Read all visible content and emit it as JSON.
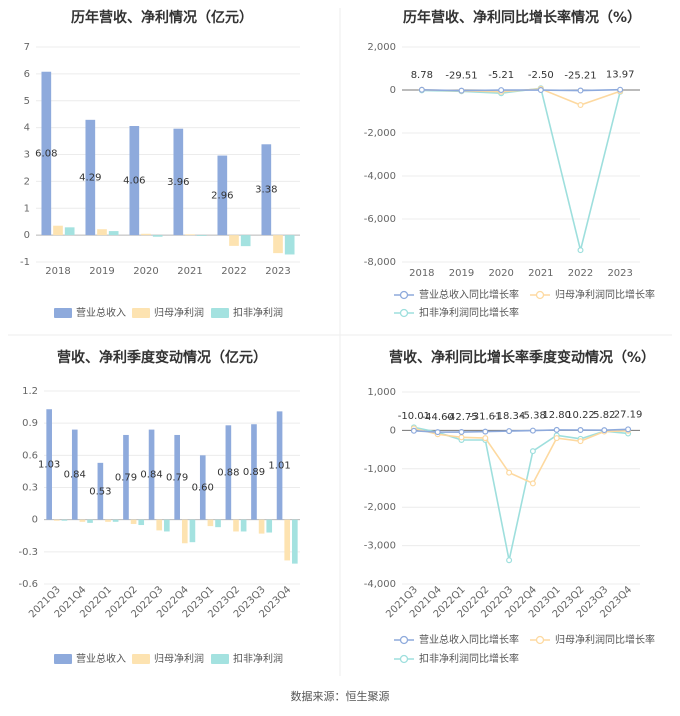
{
  "source": "数据来源：恒生聚源",
  "colors": {
    "revenue": "#8eaadc",
    "net_profit": "#fde3b1",
    "deducted_profit": "#a4e2e0",
    "revenue_line": "#8eaadc",
    "net_line": "#fdd9a0",
    "deducted_line": "#9edfdd"
  },
  "chart_data": [
    {
      "type": "bar",
      "title": "历年营收、净利情况（亿元）",
      "categories": [
        "2018",
        "2019",
        "2020",
        "2021",
        "2022",
        "2023"
      ],
      "ylim": [
        -1,
        7
      ],
      "yticks": [
        "-1",
        "0",
        "1",
        "2",
        "3",
        "4",
        "5",
        "6",
        "7"
      ],
      "series": [
        {
          "name": "营业总收入",
          "values": [
            6.08,
            4.29,
            4.06,
            3.96,
            2.96,
            3.38
          ],
          "labels": [
            "6.08",
            "4.29",
            "4.06",
            "3.96",
            "2.96",
            "3.38"
          ]
        },
        {
          "name": "归母净利润",
          "values": [
            0.35,
            0.22,
            0.05,
            0.03,
            -0.4,
            -0.67
          ]
        },
        {
          "name": "扣非净利润",
          "values": [
            0.29,
            0.15,
            -0.06,
            -0.02,
            -0.41,
            -0.72
          ]
        }
      ],
      "legend": "bottom"
    },
    {
      "type": "line",
      "title": "历年营收、净利同比增长率情况（%）",
      "categories": [
        "2018",
        "2019",
        "2020",
        "2021",
        "2022",
        "2023"
      ],
      "ylim": [
        -8000,
        2000
      ],
      "yticks": [
        "-8,000",
        "-6,000",
        "-4,000",
        "-2,000",
        "0",
        "2,000"
      ],
      "series": [
        {
          "name": "营业总收入同比增长率",
          "values": [
            8.78,
            -29.51,
            -5.21,
            -2.5,
            -25.21,
            13.97
          ],
          "labels": [
            "8.78",
            "-29.51",
            "-5.21",
            "-2.50",
            "-25.21",
            "13.97"
          ]
        },
        {
          "name": "归母净利润同比增长率",
          "values": [
            10,
            -40,
            -80,
            50,
            -700,
            -60
          ]
        },
        {
          "name": "扣非净利润同比增长率",
          "values": [
            -20,
            -60,
            -150,
            80,
            -7450,
            -80
          ]
        }
      ],
      "legend": "bottom"
    },
    {
      "type": "bar",
      "title": "营收、净利季度变动情况（亿元）",
      "categories": [
        "2021Q3",
        "2021Q4",
        "2022Q1",
        "2022Q2",
        "2022Q3",
        "2022Q4",
        "2023Q1",
        "2023Q2",
        "2023Q3",
        "2023Q4"
      ],
      "ylim": [
        -0.6,
        1.2
      ],
      "yticks": [
        "-0.6",
        "-0.3",
        "0",
        "0.3",
        "0.6",
        "0.9",
        "1.2"
      ],
      "series": [
        {
          "name": "营业总收入",
          "values": [
            1.03,
            0.84,
            0.53,
            0.79,
            0.84,
            0.79,
            0.6,
            0.88,
            0.89,
            1.01
          ],
          "labels": [
            "1.03",
            "0.84",
            "0.53",
            "0.79",
            "0.84",
            "0.79",
            "0.60",
            "0.88",
            "0.89",
            "1.01"
          ]
        },
        {
          "name": "归母净利润",
          "values": [
            -0.01,
            -0.02,
            -0.02,
            -0.04,
            -0.1,
            -0.22,
            -0.06,
            -0.11,
            -0.13,
            -0.38
          ]
        },
        {
          "name": "扣非净利润",
          "values": [
            -0.01,
            -0.03,
            -0.02,
            -0.05,
            -0.11,
            -0.21,
            -0.07,
            -0.11,
            -0.12,
            -0.41
          ]
        }
      ],
      "legend": "bottom"
    },
    {
      "type": "line",
      "title": "营收、净利同比增长率季度变动情况（%）",
      "categories": [
        "2021Q3",
        "2021Q4",
        "2022Q1",
        "2022Q2",
        "2022Q3",
        "2022Q4",
        "2023Q1",
        "2023Q2",
        "2023Q3",
        "2023Q4"
      ],
      "ylim": [
        -4000,
        1000
      ],
      "yticks": [
        "-4,000",
        "-3,000",
        "-2,000",
        "-1,000",
        "0",
        "1,000"
      ],
      "series": [
        {
          "name": "营业总收入同比增长率",
          "values": [
            -10.01,
            -44.6,
            -42.75,
            -31.61,
            -18.34,
            -5.38,
            12.8,
            10.22,
            5.82,
            27.19
          ],
          "labels": [
            "-10.01",
            "-44.60",
            "-42.75",
            "-31.61",
            "-18.34",
            "-5.38",
            "12.80",
            "10.22",
            "5.82",
            "27.19"
          ]
        },
        {
          "name": "归母净利润同比增长率",
          "values": [
            50,
            -100,
            -180,
            -200,
            -1100,
            -1380,
            -200,
            -280,
            -30,
            -10
          ]
        },
        {
          "name": "扣非净利润同比增长率",
          "values": [
            80,
            -50,
            -250,
            -250,
            -3380,
            -540,
            -130,
            -220,
            -20,
            -80
          ]
        }
      ],
      "legend": "bottom"
    }
  ]
}
